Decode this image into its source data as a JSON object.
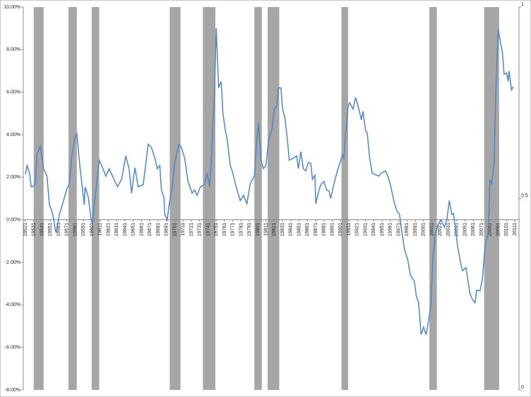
{
  "chart_data": {
    "type": "line",
    "xlim": [
      1951.75,
      2011.5
    ],
    "ylim": [
      -8,
      10
    ],
    "y2lim": [
      0,
      1
    ],
    "yticks": [
      {
        "value": -8,
        "label": "-8.00%"
      },
      {
        "value": -6,
        "label": "-6.00%"
      },
      {
        "value": -4,
        "label": "-4.00%"
      },
      {
        "value": -2,
        "label": "-2.00%"
      },
      {
        "value": 0,
        "label": "0.00%"
      },
      {
        "value": 2,
        "label": "2.00%"
      },
      {
        "value": 4,
        "label": "4.00%"
      },
      {
        "value": 6,
        "label": "6.00%"
      },
      {
        "value": 8,
        "label": "8.00%"
      },
      {
        "value": 10,
        "label": "10.00%"
      }
    ],
    "y2ticks": [
      0,
      0.5,
      1
    ],
    "xticks": [
      {
        "value": 1952,
        "label": "19521"
      },
      {
        "value": 1953,
        "label": "19531"
      },
      {
        "value": 1954,
        "label": "19541"
      },
      {
        "value": 1955,
        "label": "19551"
      },
      {
        "value": 1956,
        "label": "19561"
      },
      {
        "value": 1957,
        "label": "19571"
      },
      {
        "value": 1958,
        "label": "19581"
      },
      {
        "value": 1959,
        "label": "19591"
      },
      {
        "value": 1960,
        "label": "19601"
      },
      {
        "value": 1961,
        "label": "19611"
      },
      {
        "value": 1962,
        "label": "19621"
      },
      {
        "value": 1963,
        "label": "19631"
      },
      {
        "value": 1964,
        "label": "19641"
      },
      {
        "value": 1965,
        "label": "19651"
      },
      {
        "value": 1966,
        "label": "19661"
      },
      {
        "value": 1967,
        "label": "19671"
      },
      {
        "value": 1968,
        "label": "19681"
      },
      {
        "value": 1969,
        "label": "19691"
      },
      {
        "value": 1970,
        "label": "19701"
      },
      {
        "value": 1971,
        "label": "19711"
      },
      {
        "value": 1972,
        "label": "19721"
      },
      {
        "value": 1973,
        "label": "19731"
      },
      {
        "value": 1974,
        "label": "19741"
      },
      {
        "value": 1975,
        "label": "19751"
      },
      {
        "value": 1976,
        "label": "19761"
      },
      {
        "value": 1977,
        "label": "19771"
      },
      {
        "value": 1978,
        "label": "19781"
      },
      {
        "value": 1979,
        "label": "19791"
      },
      {
        "value": 1980,
        "label": "19801"
      },
      {
        "value": 1981,
        "label": "19811"
      },
      {
        "value": 1982,
        "label": "19821"
      },
      {
        "value": 1983,
        "label": "19831"
      },
      {
        "value": 1984,
        "label": "19841"
      },
      {
        "value": 1985,
        "label": "19851"
      },
      {
        "value": 1986,
        "label": "19861"
      },
      {
        "value": 1987,
        "label": "19871"
      },
      {
        "value": 1988,
        "label": "19881"
      },
      {
        "value": 1989,
        "label": "19891"
      },
      {
        "value": 1990,
        "label": "19901"
      },
      {
        "value": 1991,
        "label": "19911"
      },
      {
        "value": 1992,
        "label": "19921"
      },
      {
        "value": 1993,
        "label": "19931"
      },
      {
        "value": 1994,
        "label": "19941"
      },
      {
        "value": 1995,
        "label": "19951"
      },
      {
        "value": 1996,
        "label": "19961"
      },
      {
        "value": 1997,
        "label": "19971"
      },
      {
        "value": 1998,
        "label": "19981"
      },
      {
        "value": 1999,
        "label": "19991"
      },
      {
        "value": 2000,
        "label": "20001"
      },
      {
        "value": 2001,
        "label": "20011"
      },
      {
        "value": 2002,
        "label": "20021"
      },
      {
        "value": 2003,
        "label": "20031"
      },
      {
        "value": 2004,
        "label": "20041"
      },
      {
        "value": 2005,
        "label": "20051"
      },
      {
        "value": 2006,
        "label": "20061"
      },
      {
        "value": 2007,
        "label": "20071"
      },
      {
        "value": 2008,
        "label": "20081"
      },
      {
        "value": 2009,
        "label": "20091"
      },
      {
        "value": 2010,
        "label": "20101"
      },
      {
        "value": 2011,
        "label": "20111"
      }
    ],
    "shading": {
      "axis": "y2",
      "color": "#a6a6a6",
      "ranges": [
        [
          1953.0,
          1954.2
        ],
        [
          1957.2,
          1958.2
        ],
        [
          1960.0,
          1960.9
        ],
        [
          1969.4,
          1970.7
        ],
        [
          1973.4,
          1974.9
        ],
        [
          1979.6,
          1980.5
        ],
        [
          1981.2,
          1982.6
        ],
        [
          1990.1,
          1990.9
        ],
        [
          2000.7,
          2001.6
        ],
        [
          2007.3,
          2009.1
        ]
      ],
      "values": [
        1,
        1,
        1,
        1,
        1,
        1,
        1,
        1,
        1,
        1
      ]
    },
    "series": [
      {
        "color": "#4f86c6",
        "x": [
          1952.0,
          1952.2,
          1952.5,
          1952.7,
          1952.9,
          1953.2,
          1953.4,
          1953.8,
          1954.2,
          1954.6,
          1954.9,
          1955.2,
          1955.4,
          1955.6,
          1955.7,
          1956.1,
          1956.6,
          1957.0,
          1957.3,
          1957.6,
          1958.0,
          1958.2,
          1958.6,
          1959.1,
          1959.2,
          1959.6,
          1959.9,
          1960.1,
          1960.3,
          1960.7,
          1960.9,
          1961.3,
          1961.7,
          1962.1,
          1962.5,
          1963.1,
          1963.6,
          1964.1,
          1964.5,
          1964.8,
          1965.2,
          1965.6,
          1966.2,
          1966.8,
          1967.2,
          1967.6,
          1967.9,
          1968.2,
          1968.4,
          1968.7,
          1968.8,
          1969.1,
          1969.3,
          1969.7,
          1970.0,
          1970.5,
          1970.8,
          1971.2,
          1971.6,
          1972.1,
          1972.4,
          1972.7,
          1973.1,
          1973.6,
          1973.9,
          1974.2,
          1974.4,
          1974.8,
          1975.0,
          1975.3,
          1975.6,
          1975.8,
          1976.1,
          1976.3,
          1976.7,
          1977.0,
          1977.4,
          1977.9,
          1978.3,
          1978.7,
          1979.1,
          1979.6,
          1979.9,
          1980.1,
          1980.4,
          1980.7,
          1981.0,
          1981.3,
          1981.7,
          1982.0,
          1982.3,
          1982.5,
          1982.8,
          1983.0,
          1983.3,
          1983.6,
          1983.8,
          1984.3,
          1984.7,
          1984.9,
          1985.2,
          1985.5,
          1985.8,
          1986.1,
          1986.4,
          1986.6,
          1986.9,
          1987.0,
          1987.3,
          1987.6,
          1988.0,
          1988.3,
          1988.6,
          1988.8,
          1989.2,
          1989.6,
          1989.9,
          1990.2,
          1990.4,
          1990.6,
          1990.9,
          1991.1,
          1991.5,
          1991.8,
          1992.1,
          1992.5,
          1992.7,
          1993.0,
          1993.2,
          1993.5,
          1993.8,
          1994.3,
          1994.6,
          1994.9,
          1995.4,
          1995.7,
          1996.0,
          1996.5,
          1996.8,
          1997.1,
          1997.4,
          1997.7,
          1998.1,
          1998.4,
          1998.9,
          1999.1,
          1999.4,
          1999.7,
          2000.0,
          2000.3,
          2000.6,
          2000.9,
          2001.1,
          2001.4,
          2001.7,
          2002.1,
          2002.5,
          2002.8,
          2003.1,
          2003.4,
          2003.6,
          2003.9,
          2004.1,
          2004.5,
          2004.7,
          2005.1,
          2005.3,
          2005.6,
          2005.9,
          2006.2,
          2006.4,
          2006.8,
          2007.1,
          2007.4,
          2007.8,
          2008.0,
          2008.2,
          2008.5,
          2008.7,
          2009.0,
          2009.2,
          2009.5,
          2009.7,
          2010.0,
          2010.2,
          2010.3,
          2010.6,
          2010.8
        ],
        "values": [
          2.15,
          2.55,
          2.2,
          1.55,
          1.55,
          1.7,
          3.1,
          3.45,
          2.4,
          2.05,
          0.7,
          0.4,
          0.05,
          -0.45,
          -0.6,
          0.25,
          0.9,
          1.45,
          1.7,
          3.0,
          3.9,
          4.05,
          2.4,
          0.7,
          1.55,
          1.05,
          0.05,
          -0.25,
          0.75,
          2.05,
          2.8,
          2.45,
          2.05,
          2.4,
          2.05,
          1.55,
          1.9,
          3.0,
          2.4,
          1.25,
          2.45,
          1.55,
          1.65,
          3.55,
          3.4,
          2.9,
          2.4,
          2.55,
          1.4,
          1.05,
          0.25,
          0.0,
          0.65,
          1.55,
          2.7,
          3.55,
          3.4,
          2.9,
          1.8,
          1.25,
          1.4,
          1.15,
          1.55,
          1.65,
          2.2,
          1.55,
          2.7,
          6.0,
          9.0,
          6.2,
          6.5,
          5.05,
          4.2,
          3.85,
          2.55,
          2.2,
          1.55,
          0.9,
          1.15,
          0.75,
          1.7,
          2.05,
          3.8,
          4.55,
          2.8,
          2.4,
          2.55,
          3.7,
          4.2,
          5.2,
          5.35,
          6.2,
          6.2,
          5.2,
          4.75,
          3.7,
          2.8,
          2.9,
          3.0,
          2.4,
          3.2,
          2.4,
          2.3,
          2.7,
          2.65,
          1.9,
          2.1,
          0.75,
          1.25,
          1.65,
          1.8,
          1.4,
          1.35,
          1.0,
          1.7,
          2.3,
          2.65,
          3.05,
          2.9,
          4.05,
          5.35,
          5.5,
          5.2,
          5.75,
          5.35,
          4.7,
          5.1,
          4.2,
          4.1,
          2.9,
          2.2,
          2.1,
          2.05,
          2.2,
          2.3,
          2.05,
          1.65,
          0.75,
          0.4,
          0.25,
          -0.6,
          -1.4,
          -1.9,
          -2.6,
          -2.9,
          -3.55,
          -3.9,
          -5.4,
          -5.05,
          -5.4,
          -4.75,
          -3.9,
          -1.9,
          -0.75,
          -0.25,
          0.0,
          -0.35,
          0.0,
          0.9,
          0.25,
          0.3,
          -0.6,
          -1.25,
          -2.1,
          -2.4,
          -2.25,
          -2.75,
          -3.5,
          -3.75,
          -3.9,
          -3.3,
          -3.35,
          -2.75,
          -1.25,
          -0.6,
          1.85,
          1.7,
          2.7,
          6.0,
          8.95,
          8.5,
          7.85,
          6.85,
          6.9,
          6.5,
          7.0,
          6.1,
          6.25
        ]
      }
    ]
  }
}
